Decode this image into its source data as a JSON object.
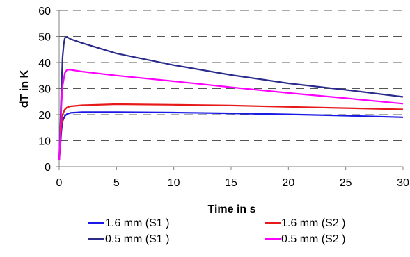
{
  "chart_data": {
    "type": "line",
    "title": "",
    "xlabel": "Time in s",
    "ylabel": "dT in K",
    "xlim": [
      0,
      30
    ],
    "ylim": [
      0,
      60
    ],
    "xticks": [
      0,
      5,
      10,
      15,
      20,
      25,
      30
    ],
    "yticks": [
      0,
      10,
      20,
      30,
      40,
      50,
      60
    ],
    "grid": "horizontal dashed",
    "legend_placement": "bottom",
    "series": [
      {
        "name": "1.6 mm    (S1 )",
        "color": "#1a1ae6",
        "x": [
          0,
          0.1,
          0.2,
          0.3,
          0.5,
          0.7,
          1,
          2,
          5,
          10,
          15,
          20,
          25,
          30
        ],
        "y": [
          2.5,
          8,
          14,
          17.5,
          19.5,
          20.3,
          20.7,
          21,
          21,
          20.8,
          20.5,
          20.1,
          19.6,
          19
        ]
      },
      {
        "name": "1.6 mm    (S2 )",
        "color": "#e61a1a",
        "x": [
          0,
          0.1,
          0.2,
          0.3,
          0.5,
          0.7,
          1,
          2,
          5,
          10,
          15,
          20,
          25,
          30
        ],
        "y": [
          2.5,
          9,
          16,
          20,
          22,
          22.8,
          23.2,
          23.6,
          24,
          23.8,
          23.5,
          23,
          22.5,
          22
        ]
      },
      {
        "name": "0.5 mm    (S1 )",
        "color": "#2b2b8c",
        "x": [
          0,
          0.1,
          0.2,
          0.3,
          0.4,
          0.5,
          0.7,
          1,
          2,
          5,
          10,
          15,
          20,
          25,
          30
        ],
        "y": [
          2.5,
          15,
          30,
          42,
          47,
          49.5,
          49.8,
          49,
          47.5,
          43.5,
          39,
          35.2,
          32,
          29.5,
          26.8
        ]
      },
      {
        "name": "0.5 mm    (S2 )",
        "color": "#ff00ff",
        "x": [
          0,
          0.1,
          0.2,
          0.3,
          0.5,
          0.7,
          1,
          2,
          5,
          10,
          15,
          20,
          25,
          30
        ],
        "y": [
          2.5,
          12,
          24,
          31,
          36,
          37.3,
          37.2,
          36.5,
          35,
          32.8,
          30.5,
          28.3,
          26.3,
          24.2
        ]
      }
    ]
  }
}
